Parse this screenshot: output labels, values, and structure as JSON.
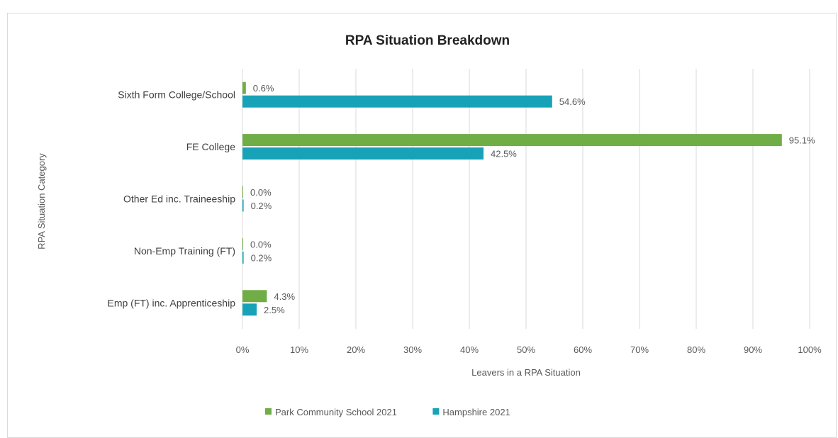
{
  "chart_data": {
    "type": "bar",
    "orientation": "horizontal",
    "title": "RPA Situation Breakdown",
    "xlabel": "Leavers in a RPA Situation",
    "ylabel": "RPA Situation Category",
    "xlim": [
      0,
      100
    ],
    "x_ticks": [
      "0%",
      "10%",
      "20%",
      "30%",
      "40%",
      "50%",
      "60%",
      "70%",
      "80%",
      "90%",
      "100%"
    ],
    "categories": [
      "Sixth Form College/School",
      "FE College",
      "Other Ed inc. Traineeship",
      "Non-Emp Training (FT)",
      "Emp (FT) inc. Apprenticeship"
    ],
    "series": [
      {
        "name": "Park Community School 2021",
        "color": "#70ad47",
        "values": [
          0.6,
          95.1,
          0.0,
          0.0,
          4.3
        ],
        "labels": [
          "0.6%",
          "95.1%",
          "0.0%",
          "0.0%",
          "4.3%"
        ]
      },
      {
        "name": "Hampshire 2021",
        "color": "#17a2b8",
        "values": [
          54.6,
          42.5,
          0.2,
          0.2,
          2.5
        ],
        "labels": [
          "54.6%",
          "42.5%",
          "0.2%",
          "0.2%",
          "2.5%"
        ]
      }
    ],
    "grid": true,
    "legend_position": "bottom"
  }
}
